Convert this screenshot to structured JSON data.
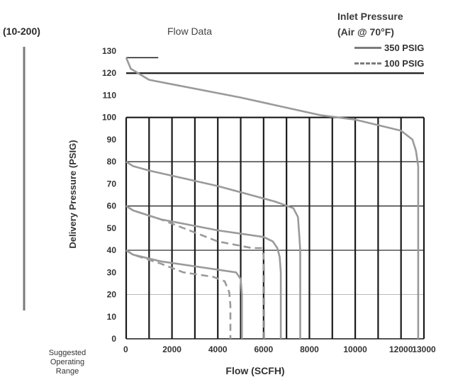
{
  "header": {
    "range_label": "(10-200)",
    "chart_title": "Flow Data",
    "legend_title_line1": "Inlet Pressure",
    "legend_title_line2": "(Air @ 70°F)"
  },
  "footer": {
    "suggested_line1": "Suggested",
    "suggested_line2": "Operating",
    "suggested_line3": "Range"
  },
  "colors": {
    "curve": "#9a9a9a",
    "grid": "#1a1a1a",
    "range_bar": "#7a7a7a"
  },
  "chart_data": {
    "type": "line",
    "title": "Flow Data",
    "xlabel": "Flow (SCFH)",
    "ylabel": "Delivery Pressure (PSIG)",
    "xlim": [
      0,
      13000
    ],
    "ylim": [
      0,
      130
    ],
    "xticks": [
      0,
      2000,
      4000,
      6000,
      8000,
      10000,
      12000,
      13000
    ],
    "yticks": [
      0,
      10,
      20,
      30,
      40,
      50,
      60,
      70,
      80,
      90,
      100,
      110,
      120,
      130
    ],
    "grid": true,
    "legend": [
      {
        "label": "350 PSIG",
        "style": "solid"
      },
      {
        "label": "100 PSIG",
        "style": "dashed"
      }
    ],
    "suggested_operating_range": [
      10,
      130
    ],
    "series": [
      {
        "inlet": "350 PSIG",
        "style": "solid",
        "points": [
          [
            0,
            127
          ],
          [
            200,
            122
          ],
          [
            1000,
            117
          ],
          [
            5000,
            109
          ],
          [
            8500,
            101
          ],
          [
            10000,
            99
          ],
          [
            12000,
            94
          ],
          [
            12500,
            90
          ],
          [
            12650,
            85
          ],
          [
            12750,
            78
          ],
          [
            12750,
            0
          ]
        ]
      },
      {
        "inlet": "350 PSIG",
        "style": "solid",
        "points": [
          [
            0,
            80
          ],
          [
            300,
            78
          ],
          [
            1000,
            76
          ],
          [
            4000,
            69
          ],
          [
            6500,
            62
          ],
          [
            7300,
            59
          ],
          [
            7500,
            55
          ],
          [
            7550,
            48
          ],
          [
            7600,
            40
          ],
          [
            7600,
            0
          ]
        ]
      },
      {
        "inlet": "350 PSIG",
        "style": "solid",
        "points": [
          [
            0,
            60
          ],
          [
            300,
            58
          ],
          [
            1500,
            54
          ],
          [
            4000,
            49
          ],
          [
            6000,
            46
          ],
          [
            6400,
            44
          ],
          [
            6600,
            41
          ],
          [
            6700,
            37
          ],
          [
            6750,
            30
          ],
          [
            6750,
            0
          ]
        ]
      },
      {
        "inlet": "350 PSIG",
        "style": "solid",
        "points": [
          [
            0,
            40
          ],
          [
            300,
            38
          ],
          [
            1500,
            35
          ],
          [
            3500,
            32
          ],
          [
            4800,
            30
          ],
          [
            5000,
            27
          ],
          [
            5050,
            20
          ],
          [
            5050,
            0
          ]
        ]
      },
      {
        "inlet": "100 PSIG",
        "style": "dashed",
        "points": [
          [
            0,
            60
          ],
          [
            300,
            58
          ],
          [
            1500,
            54
          ],
          [
            2500,
            50
          ],
          [
            4000,
            44
          ],
          [
            5500,
            41
          ],
          [
            5900,
            41
          ],
          [
            6000,
            38
          ],
          [
            6020,
            30
          ],
          [
            6020,
            0
          ]
        ]
      },
      {
        "inlet": "100 PSIG",
        "style": "dashed",
        "points": [
          [
            0,
            40
          ],
          [
            300,
            38
          ],
          [
            1500,
            34
          ],
          [
            2500,
            30
          ],
          [
            3800,
            28
          ],
          [
            4300,
            26
          ],
          [
            4500,
            21
          ],
          [
            4550,
            15
          ],
          [
            4550,
            0
          ]
        ]
      }
    ]
  }
}
